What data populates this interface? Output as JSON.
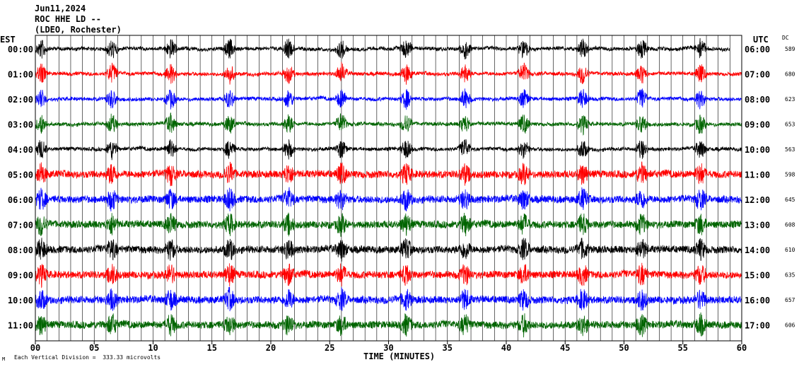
{
  "header": {
    "date": "Jun11,2024",
    "station": "ROC HHE LD --",
    "network": "(LDEO, Rochester)"
  },
  "left_axis_label": "EST",
  "right_axis_label": "UTC",
  "dc_label": "DC",
  "footer": {
    "scale_note": "Each Vertical Division =  333.33 microvolts",
    "corner_mark": "M"
  },
  "chart_data": {
    "type": "line",
    "xlabel": "TIME (MINUTES)",
    "xlim": [
      0,
      60
    ],
    "x_ticks": [
      "00",
      "05",
      "10",
      "15",
      "20",
      "25",
      "30",
      "35",
      "40",
      "45",
      "50",
      "55",
      "60"
    ],
    "rows": [
      {
        "est": "00:00",
        "utc": "06:00",
        "dc": "589",
        "color": "#000000"
      },
      {
        "est": "01:00",
        "utc": "07:00",
        "dc": "680",
        "color": "#ff0000"
      },
      {
        "est": "02:00",
        "utc": "08:00",
        "dc": "623",
        "color": "#0000ff"
      },
      {
        "est": "03:00",
        "utc": "09:00",
        "dc": "653",
        "color": "#006400"
      },
      {
        "est": "04:00",
        "utc": "10:00",
        "dc": "563",
        "color": "#000000"
      },
      {
        "est": "05:00",
        "utc": "11:00",
        "dc": "598",
        "color": "#ff0000"
      },
      {
        "est": "06:00",
        "utc": "12:00",
        "dc": "645",
        "color": "#0000ff"
      },
      {
        "est": "07:00",
        "utc": "13:00",
        "dc": "608",
        "color": "#006400"
      },
      {
        "est": "08:00",
        "utc": "14:00",
        "dc": "610",
        "color": "#000000"
      },
      {
        "est": "09:00",
        "utc": "15:00",
        "dc": "635",
        "color": "#ff0000"
      },
      {
        "est": "10:00",
        "utc": "16:00",
        "dc": "657",
        "color": "#0000ff"
      },
      {
        "est": "11:00",
        "utc": "17:00",
        "dc": "606",
        "color": "#006400"
      }
    ]
  }
}
